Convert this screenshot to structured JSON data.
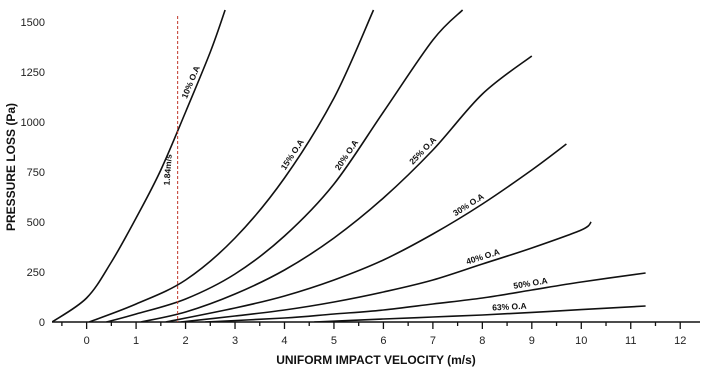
{
  "chart_data": {
    "type": "line",
    "xlabel": "UNIFORM IMPACT VELOCITY (m/s)",
    "ylabel": "PRESSURE LOSS (Pa)",
    "xlim": [
      -0.7,
      12.4
    ],
    "ylim": [
      0,
      1550
    ],
    "x_ticks": [
      0,
      1,
      2,
      3,
      4,
      5,
      6,
      7,
      8,
      9,
      10,
      11,
      12
    ],
    "y_ticks": [
      0,
      250,
      500,
      750,
      1000,
      1250,
      1500
    ],
    "grid": false,
    "legend": "inline curve labels",
    "series": [
      {
        "name": "10% O.A",
        "points": [
          [
            -0.7,
            0
          ],
          [
            0,
            120
          ],
          [
            0.5,
            300
          ],
          [
            1,
            520
          ],
          [
            1.5,
            760
          ],
          [
            2,
            1050
          ],
          [
            2.5,
            1350
          ],
          [
            2.8,
            1560
          ]
        ]
      },
      {
        "name": "15% O.A",
        "points": [
          [
            0.05,
            0
          ],
          [
            1,
            90
          ],
          [
            2,
            210
          ],
          [
            3,
            420
          ],
          [
            4,
            720
          ],
          [
            5,
            1120
          ],
          [
            5.8,
            1560
          ]
        ]
      },
      {
        "name": "20% O.A",
        "points": [
          [
            0.4,
            0
          ],
          [
            1,
            40
          ],
          [
            2,
            115
          ],
          [
            3,
            240
          ],
          [
            4,
            430
          ],
          [
            5,
            690
          ],
          [
            6,
            1050
          ],
          [
            7,
            1410
          ],
          [
            7.6,
            1560
          ]
        ]
      },
      {
        "name": "25% O.A",
        "points": [
          [
            1.1,
            0
          ],
          [
            2,
            50
          ],
          [
            3,
            140
          ],
          [
            4,
            260
          ],
          [
            5,
            420
          ],
          [
            6,
            620
          ],
          [
            7,
            860
          ],
          [
            8,
            1140
          ],
          [
            9,
            1330
          ]
        ]
      },
      {
        "name": "30% O.A",
        "points": [
          [
            1.6,
            0
          ],
          [
            3,
            70
          ],
          [
            4,
            130
          ],
          [
            5,
            210
          ],
          [
            6,
            310
          ],
          [
            7,
            440
          ],
          [
            8,
            590
          ],
          [
            9,
            760
          ],
          [
            9.7,
            890
          ]
        ]
      },
      {
        "name": "40% O.A",
        "points": [
          [
            1.9,
            0
          ],
          [
            3,
            30
          ],
          [
            4,
            60
          ],
          [
            5,
            100
          ],
          [
            6,
            150
          ],
          [
            7,
            210
          ],
          [
            8,
            290
          ],
          [
            9,
            370
          ],
          [
            10,
            460
          ],
          [
            10.2,
            500
          ]
        ]
      },
      {
        "name": "50% O.A",
        "points": [
          [
            2.4,
            0
          ],
          [
            4,
            20
          ],
          [
            5,
            40
          ],
          [
            6,
            60
          ],
          [
            7,
            90
          ],
          [
            8,
            120
          ],
          [
            9,
            160
          ],
          [
            10,
            200
          ],
          [
            11.3,
            245
          ]
        ]
      },
      {
        "name": "63% O.A",
        "points": [
          [
            4.6,
            0
          ],
          [
            6,
            15
          ],
          [
            7,
            25
          ],
          [
            8,
            35
          ],
          [
            9,
            48
          ],
          [
            10,
            62
          ],
          [
            11.3,
            80
          ]
        ]
      }
    ],
    "annotations": [
      {
        "label": "1.84m/s",
        "x": 1.84
      }
    ]
  }
}
